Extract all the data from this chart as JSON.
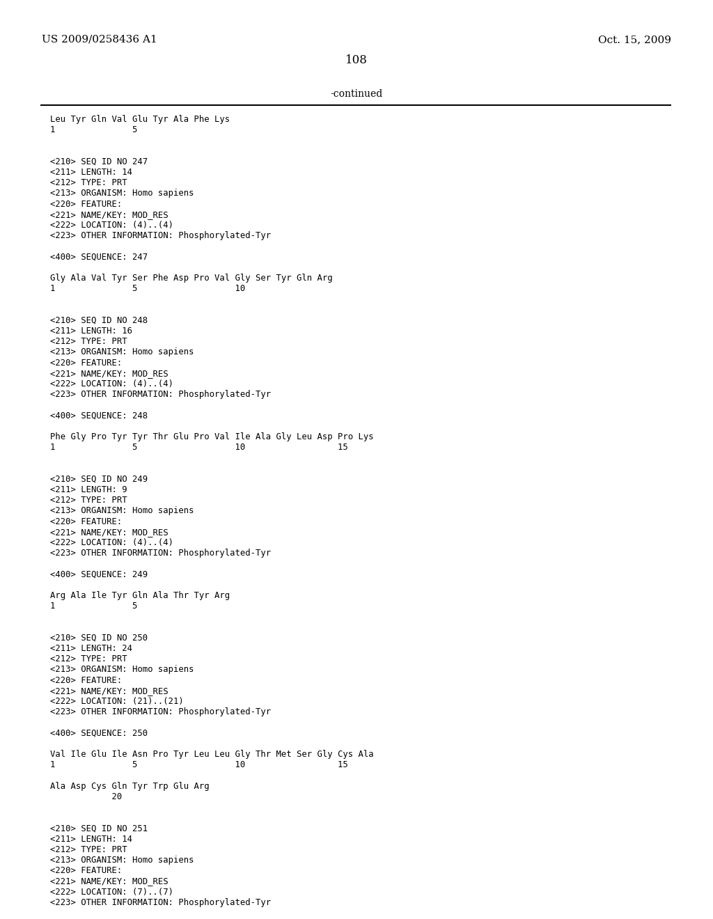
{
  "header_left": "US 2009/0258436 A1",
  "header_right": "Oct. 15, 2009",
  "page_number": "108",
  "continued_text": "-continued",
  "background_color": "#ffffff",
  "text_color": "#000000",
  "figsize": [
    10.24,
    13.2
  ],
  "dpi": 100,
  "content": [
    "Leu Tyr Gln Val Glu Tyr Ala Phe Lys",
    "1               5",
    "",
    "",
    "<210> SEQ ID NO 247",
    "<211> LENGTH: 14",
    "<212> TYPE: PRT",
    "<213> ORGANISM: Homo sapiens",
    "<220> FEATURE:",
    "<221> NAME/KEY: MOD_RES",
    "<222> LOCATION: (4)..(4)",
    "<223> OTHER INFORMATION: Phosphorylated-Tyr",
    "",
    "<400> SEQUENCE: 247",
    "",
    "Gly Ala Val Tyr Ser Phe Asp Pro Val Gly Ser Tyr Gln Arg",
    "1               5                   10",
    "",
    "",
    "<210> SEQ ID NO 248",
    "<211> LENGTH: 16",
    "<212> TYPE: PRT",
    "<213> ORGANISM: Homo sapiens",
    "<220> FEATURE:",
    "<221> NAME/KEY: MOD_RES",
    "<222> LOCATION: (4)..(4)",
    "<223> OTHER INFORMATION: Phosphorylated-Tyr",
    "",
    "<400> SEQUENCE: 248",
    "",
    "Phe Gly Pro Tyr Tyr Thr Glu Pro Val Ile Ala Gly Leu Asp Pro Lys",
    "1               5                   10                  15",
    "",
    "",
    "<210> SEQ ID NO 249",
    "<211> LENGTH: 9",
    "<212> TYPE: PRT",
    "<213> ORGANISM: Homo sapiens",
    "<220> FEATURE:",
    "<221> NAME/KEY: MOD_RES",
    "<222> LOCATION: (4)..(4)",
    "<223> OTHER INFORMATION: Phosphorylated-Tyr",
    "",
    "<400> SEQUENCE: 249",
    "",
    "Arg Ala Ile Tyr Gln Ala Thr Tyr Arg",
    "1               5",
    "",
    "",
    "<210> SEQ ID NO 250",
    "<211> LENGTH: 24",
    "<212> TYPE: PRT",
    "<213> ORGANISM: Homo sapiens",
    "<220> FEATURE:",
    "<221> NAME/KEY: MOD_RES",
    "<222> LOCATION: (21)..(21)",
    "<223> OTHER INFORMATION: Phosphorylated-Tyr",
    "",
    "<400> SEQUENCE: 250",
    "",
    "Val Ile Glu Ile Asn Pro Tyr Leu Leu Gly Thr Met Ser Gly Cys Ala",
    "1               5                   10                  15",
    "",
    "Ala Asp Cys Gln Tyr Trp Glu Arg",
    "            20",
    "",
    "",
    "<210> SEQ ID NO 251",
    "<211> LENGTH: 14",
    "<212> TYPE: PRT",
    "<213> ORGANISM: Homo sapiens",
    "<220> FEATURE:",
    "<221> NAME/KEY: MOD_RES",
    "<222> LOCATION: (7)..(7)",
    "<223> OTHER INFORMATION: Phosphorylated-Tyr"
  ]
}
